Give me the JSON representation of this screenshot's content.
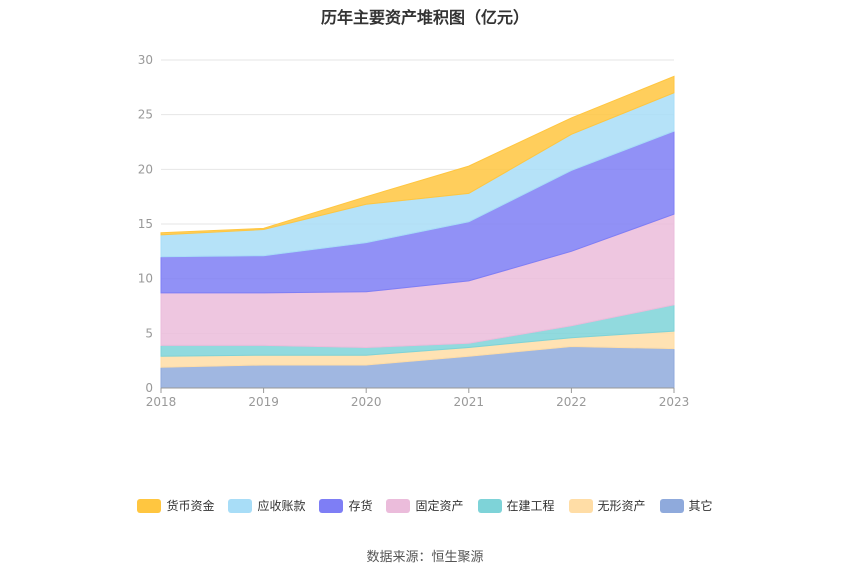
{
  "chart_data": {
    "type": "area",
    "stacked": true,
    "title": "历年主要资产堆积图（亿元）",
    "categories": [
      "2018",
      "2019",
      "2020",
      "2021",
      "2022",
      "2023"
    ],
    "ylim": [
      0,
      30
    ],
    "yticks": [
      0,
      5,
      10,
      15,
      20,
      25,
      30
    ],
    "grid": true,
    "legend_position": "bottom",
    "series": [
      {
        "name": "其它",
        "color": "#8faadc",
        "values": [
          1.9,
          2.1,
          2.1,
          2.9,
          3.8,
          3.6
        ]
      },
      {
        "name": "无形资产",
        "color": "#ffdda6",
        "values": [
          1.0,
          0.9,
          0.9,
          0.8,
          0.8,
          1.6
        ]
      },
      {
        "name": "在建工程",
        "color": "#7ed3d8",
        "values": [
          1.0,
          0.9,
          0.7,
          0.4,
          1.1,
          2.4
        ]
      },
      {
        "name": "固定资产",
        "color": "#ebbcdb",
        "values": [
          4.8,
          4.8,
          5.1,
          5.7,
          6.8,
          8.3
        ]
      },
      {
        "name": "存货",
        "color": "#7e7ef5",
        "values": [
          3.3,
          3.4,
          4.5,
          5.4,
          7.4,
          7.6
        ]
      },
      {
        "name": "应收账款",
        "color": "#a8ddf7",
        "values": [
          2.0,
          2.4,
          3.5,
          2.6,
          3.3,
          3.5
        ]
      },
      {
        "name": "货币资金",
        "color": "#ffc640",
        "values": [
          0.2,
          0.1,
          0.7,
          2.5,
          1.5,
          1.5
        ]
      }
    ],
    "legend_order": [
      "货币资金",
      "应收账款",
      "存货",
      "固定资产",
      "在建工程",
      "无形资产",
      "其它"
    ],
    "source": "数据来源：恒生聚源"
  }
}
